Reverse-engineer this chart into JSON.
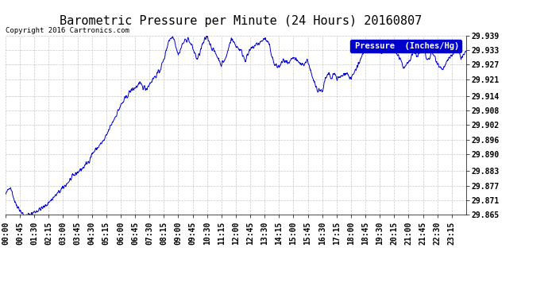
{
  "title": "Barometric Pressure per Minute (24 Hours) 20160807",
  "copyright": "Copyright 2016 Cartronics.com",
  "legend_label": "Pressure  (Inches/Hg)",
  "line_color": "#0000CC",
  "legend_bg": "#0000CC",
  "legend_text_color": "#FFFFFF",
  "background_color": "#FFFFFF",
  "grid_color": "#BBBBBB",
  "ylim": [
    29.865,
    29.939
  ],
  "yticks": [
    29.865,
    29.871,
    29.877,
    29.883,
    29.89,
    29.896,
    29.902,
    29.908,
    29.914,
    29.921,
    29.927,
    29.933,
    29.939
  ],
  "xtick_labels": [
    "00:00",
    "00:45",
    "01:30",
    "02:15",
    "03:00",
    "03:45",
    "04:30",
    "05:15",
    "06:00",
    "06:45",
    "07:30",
    "08:15",
    "09:00",
    "09:45",
    "10:30",
    "11:15",
    "12:00",
    "12:45",
    "13:30",
    "14:15",
    "15:00",
    "15:45",
    "16:30",
    "17:15",
    "18:00",
    "18:45",
    "19:30",
    "20:15",
    "21:00",
    "21:45",
    "22:30",
    "23:15"
  ],
  "title_fontsize": 11,
  "copyright_fontsize": 6.5,
  "tick_fontsize": 7,
  "legend_fontsize": 7.5,
  "control_points": [
    [
      0,
      29.873
    ],
    [
      15,
      29.877
    ],
    [
      30,
      29.87
    ],
    [
      60,
      29.864
    ],
    [
      90,
      29.866
    ],
    [
      120,
      29.868
    ],
    [
      150,
      29.872
    ],
    [
      180,
      29.876
    ],
    [
      200,
      29.879
    ],
    [
      220,
      29.882
    ],
    [
      240,
      29.884
    ],
    [
      260,
      29.887
    ],
    [
      270,
      29.89
    ],
    [
      290,
      29.893
    ],
    [
      310,
      29.896
    ],
    [
      330,
      29.902
    ],
    [
      360,
      29.91
    ],
    [
      390,
      29.916
    ],
    [
      420,
      29.919
    ],
    [
      440,
      29.917
    ],
    [
      460,
      29.921
    ],
    [
      480,
      29.924
    ],
    [
      495,
      29.929
    ],
    [
      510,
      29.937
    ],
    [
      525,
      29.939
    ],
    [
      540,
      29.931
    ],
    [
      555,
      29.936
    ],
    [
      570,
      29.938
    ],
    [
      585,
      29.934
    ],
    [
      600,
      29.929
    ],
    [
      615,
      29.935
    ],
    [
      630,
      29.939
    ],
    [
      645,
      29.934
    ],
    [
      660,
      29.931
    ],
    [
      675,
      29.927
    ],
    [
      690,
      29.93
    ],
    [
      705,
      29.938
    ],
    [
      720,
      29.935
    ],
    [
      735,
      29.933
    ],
    [
      750,
      29.929
    ],
    [
      765,
      29.933
    ],
    [
      780,
      29.935
    ],
    [
      795,
      29.936
    ],
    [
      810,
      29.938
    ],
    [
      825,
      29.935
    ],
    [
      840,
      29.927
    ],
    [
      855,
      29.926
    ],
    [
      870,
      29.929
    ],
    [
      885,
      29.927
    ],
    [
      900,
      29.93
    ],
    [
      915,
      29.928
    ],
    [
      930,
      29.927
    ],
    [
      945,
      29.929
    ],
    [
      960,
      29.921
    ],
    [
      975,
      29.917
    ],
    [
      990,
      29.916
    ],
    [
      1000,
      29.921
    ],
    [
      1010,
      29.923
    ],
    [
      1020,
      29.921
    ],
    [
      1030,
      29.924
    ],
    [
      1035,
      29.921
    ],
    [
      1050,
      29.922
    ],
    [
      1065,
      29.924
    ],
    [
      1080,
      29.921
    ],
    [
      1095,
      29.925
    ],
    [
      1110,
      29.929
    ],
    [
      1125,
      29.933
    ],
    [
      1140,
      29.934
    ],
    [
      1155,
      29.933
    ],
    [
      1170,
      29.932
    ],
    [
      1185,
      29.933
    ],
    [
      1200,
      29.934
    ],
    [
      1215,
      29.933
    ],
    [
      1230,
      29.93
    ],
    [
      1245,
      29.926
    ],
    [
      1260,
      29.928
    ],
    [
      1275,
      29.932
    ],
    [
      1290,
      29.931
    ],
    [
      1305,
      29.933
    ],
    [
      1320,
      29.929
    ],
    [
      1335,
      29.932
    ],
    [
      1350,
      29.928
    ],
    [
      1365,
      29.925
    ],
    [
      1380,
      29.928
    ],
    [
      1395,
      29.931
    ],
    [
      1410,
      29.933
    ],
    [
      1425,
      29.93
    ],
    [
      1439,
      29.932
    ]
  ]
}
